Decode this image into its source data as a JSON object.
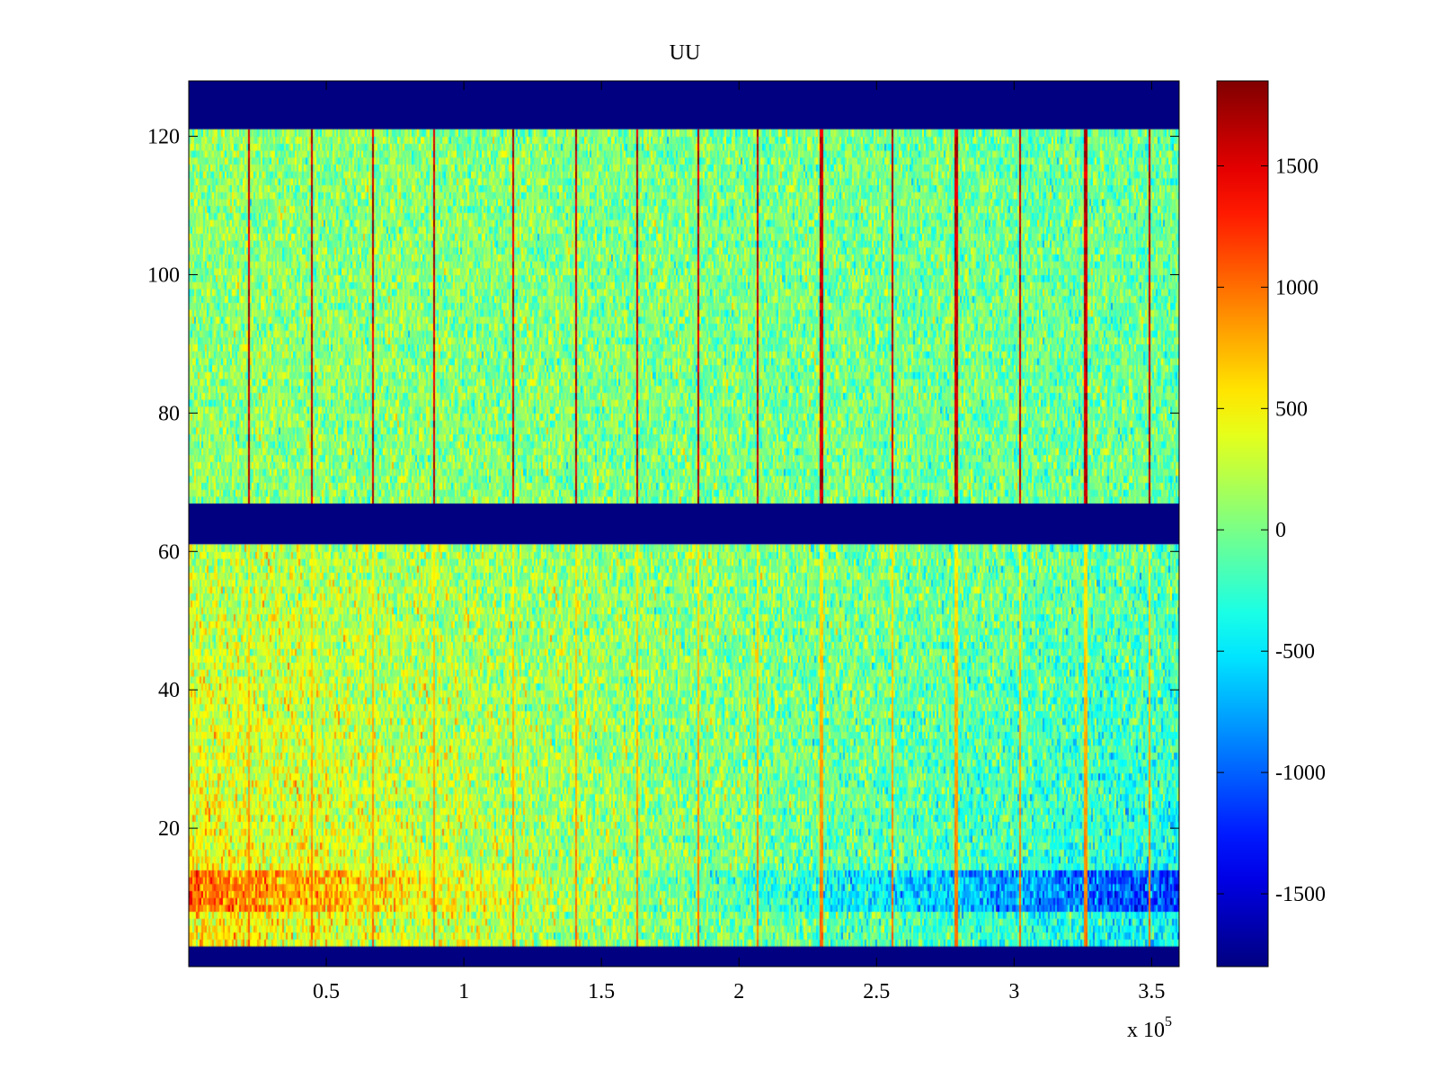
{
  "chart_data": {
    "type": "heatmap",
    "title": "UU",
    "xlabel": "",
    "ylabel": "",
    "x_multiplier_label": "x 10",
    "x_multiplier_exponent": "5",
    "xlim": [
      0,
      3.6
    ],
    "ylim": [
      0,
      128
    ],
    "clim": [
      -1800,
      1850
    ],
    "colormap": "jet",
    "grid": false,
    "x_ticks": [
      {
        "value": 0.5,
        "label": "0.5"
      },
      {
        "value": 1,
        "label": "1"
      },
      {
        "value": 1.5,
        "label": "1.5"
      },
      {
        "value": 2,
        "label": "2"
      },
      {
        "value": 2.5,
        "label": "2.5"
      },
      {
        "value": 3,
        "label": "3"
      },
      {
        "value": 3.5,
        "label": "3.5"
      }
    ],
    "y_ticks": [
      {
        "value": 20,
        "label": "20"
      },
      {
        "value": 40,
        "label": "40"
      },
      {
        "value": 60,
        "label": "60"
      },
      {
        "value": 80,
        "label": "80"
      },
      {
        "value": 100,
        "label": "100"
      },
      {
        "value": 120,
        "label": "120"
      }
    ],
    "colorbar_ticks": [
      {
        "value": 1500,
        "label": "1500"
      },
      {
        "value": 1000,
        "label": "1000"
      },
      {
        "value": 500,
        "label": "500"
      },
      {
        "value": 0,
        "label": "0"
      },
      {
        "value": -500,
        "label": "-500"
      },
      {
        "value": -1000,
        "label": "-1000"
      },
      {
        "value": -1500,
        "label": "-1500"
      }
    ],
    "blank_bands": [
      {
        "y_start": 0,
        "y_end": 3,
        "value": -1800
      },
      {
        "y_start": 61,
        "y_end": 67,
        "value": -1800
      },
      {
        "y_start": 121,
        "y_end": 128,
        "value": -1800
      }
    ],
    "regions": [
      {
        "name": "lower",
        "y_start": 3,
        "y_end": 61,
        "base_value": 100,
        "noise": 450,
        "line_value": 1300
      },
      {
        "name": "upper",
        "y_start": 67,
        "y_end": 121,
        "base_value": 50,
        "noise": 420,
        "line_value": 1850
      }
    ],
    "vertical_lines_x": [
      0.22,
      0.45,
      0.67,
      0.89,
      1.18,
      1.41,
      1.63,
      1.85,
      2.07,
      2.3,
      2.56,
      2.79,
      3.02,
      3.26,
      3.49
    ]
  }
}
